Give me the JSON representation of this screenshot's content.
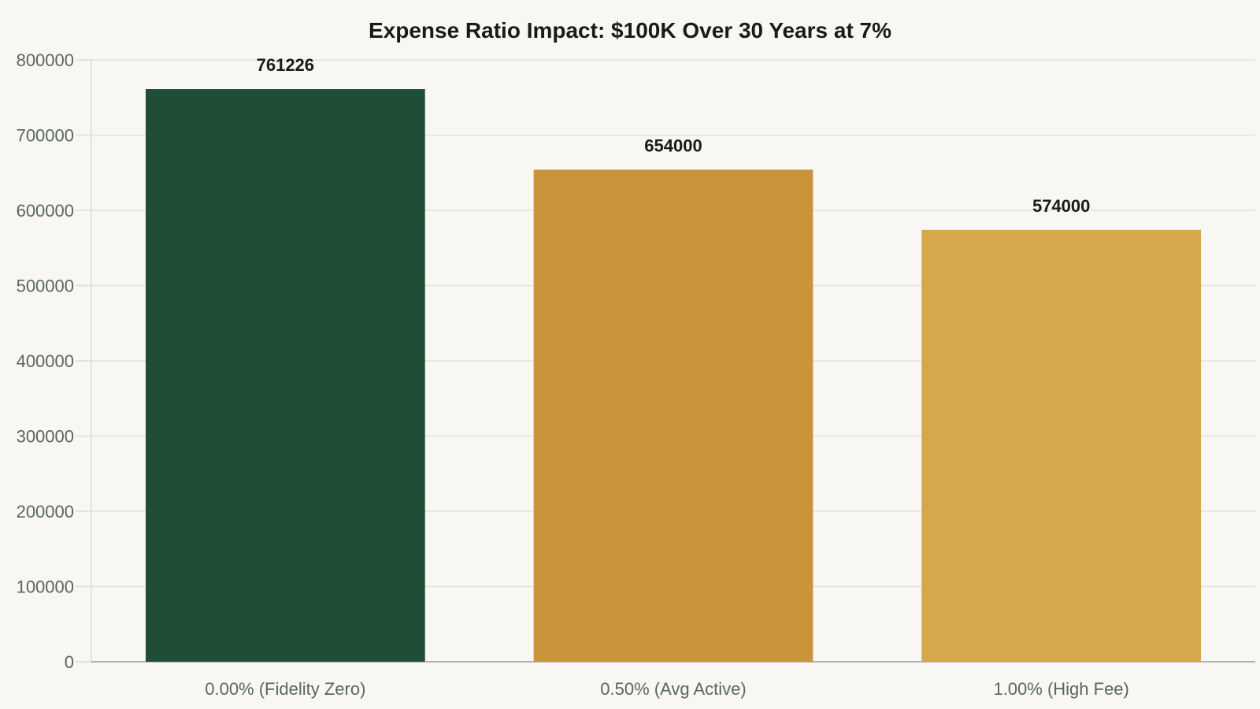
{
  "chart_data": {
    "type": "bar",
    "title": "Expense Ratio Impact: $100K Over 30 Years at 7%",
    "xlabel": "",
    "ylabel": "",
    "categories": [
      "0.00% (Fidelity Zero)",
      "0.50% (Avg Active)",
      "1.00% (High Fee)"
    ],
    "values": [
      761226,
      654000,
      574000
    ],
    "data_labels": [
      "761226",
      "654000",
      "574000"
    ],
    "colors": [
      "#1f4d36",
      "#c9943a",
      "#d4a84b"
    ],
    "ylim": [
      0,
      800000
    ],
    "yticks": [
      0,
      100000,
      200000,
      300000,
      400000,
      500000,
      600000,
      700000,
      800000
    ],
    "ytick_labels": [
      "0",
      "100000",
      "200000",
      "300000",
      "400000",
      "500000",
      "600000",
      "700000",
      "800000"
    ],
    "grid": true,
    "legend": "none"
  }
}
